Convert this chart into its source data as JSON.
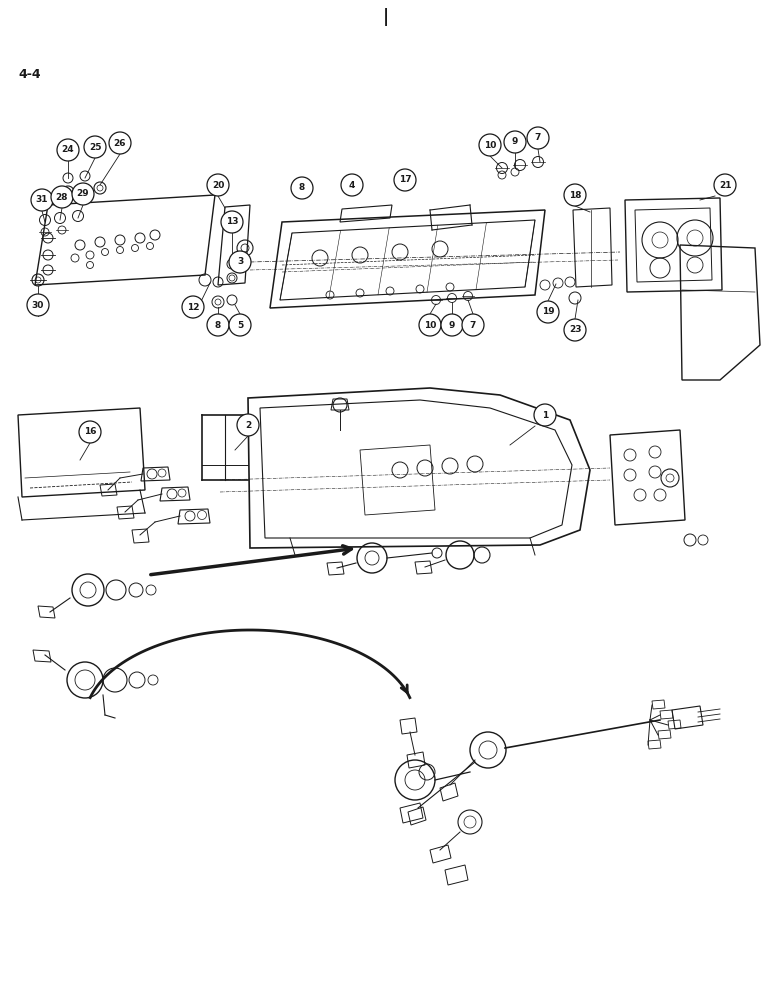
{
  "bg_color": "#ffffff",
  "line_color": "#1a1a1a",
  "fig_width": 7.72,
  "fig_height": 10.0,
  "dpi": 100,
  "page_label": "4-4",
  "title_char": "|"
}
